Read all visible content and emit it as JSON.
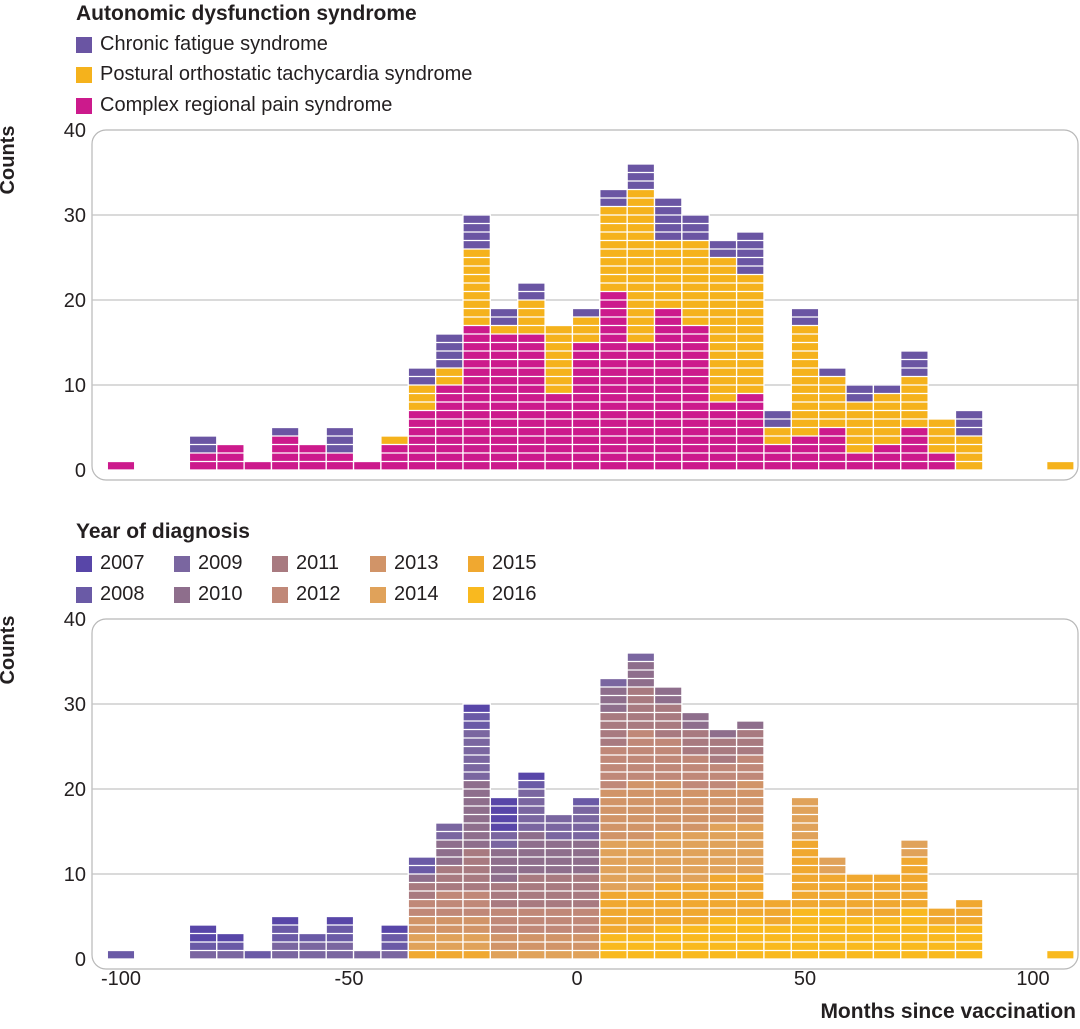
{
  "chart_data": [
    {
      "type": "bar",
      "stacked": true,
      "title": "Autonomic dysfunction syndrome",
      "ylabel": "Counts",
      "xlabel": "",
      "ylim": [
        0,
        40
      ],
      "yticks": [
        0,
        10,
        20,
        30,
        40
      ],
      "bin_width": 6,
      "x": [
        -100,
        -82,
        -76,
        -70,
        -64,
        -58,
        -52,
        -46,
        -40,
        -34,
        -28,
        -22,
        -16,
        -10,
        -4,
        2,
        8,
        14,
        20,
        26,
        32,
        38,
        44,
        50,
        56,
        62,
        68,
        74,
        80,
        86,
        106
      ],
      "series": [
        {
          "name": "Complex regional pain syndrome",
          "color": "#cc1a8c",
          "values": [
            1,
            2,
            3,
            1,
            4,
            3,
            2,
            1,
            3,
            7,
            10,
            17,
            16,
            16,
            9,
            15,
            21,
            15,
            19,
            17,
            8,
            9,
            3,
            4,
            5,
            2,
            3,
            5,
            2,
            0,
            0
          ]
        },
        {
          "name": "Postural orthostatic tachycardia syndrome",
          "color": "#f5b21c",
          "values": [
            0,
            0,
            0,
            0,
            0,
            0,
            0,
            0,
            1,
            3,
            2,
            9,
            1,
            4,
            8,
            3,
            10,
            18,
            8,
            10,
            17,
            14,
            2,
            13,
            6,
            6,
            6,
            6,
            4,
            4,
            1
          ]
        },
        {
          "name": "Chronic fatigue syndrome",
          "color": "#6a55a3",
          "values": [
            0,
            2,
            0,
            0,
            1,
            0,
            3,
            0,
            0,
            2,
            4,
            4,
            2,
            2,
            0,
            1,
            2,
            3,
            5,
            3,
            2,
            5,
            2,
            2,
            1,
            2,
            1,
            3,
            0,
            3,
            0
          ]
        }
      ]
    },
    {
      "type": "bar",
      "stacked": true,
      "title": "Year of diagnosis",
      "ylabel": "Counts",
      "xlabel": "Months since vaccination",
      "ylim": [
        0,
        40
      ],
      "yticks": [
        0,
        10,
        20,
        30,
        40
      ],
      "xticks": [
        -100,
        -50,
        0,
        50,
        100
      ],
      "xlim": [
        -105,
        110
      ],
      "bin_width": 6,
      "x": [
        -100,
        -82,
        -76,
        -70,
        -64,
        -58,
        -52,
        -46,
        -40,
        -34,
        -28,
        -22,
        -16,
        -10,
        -4,
        2,
        8,
        14,
        20,
        26,
        32,
        38,
        44,
        50,
        56,
        62,
        68,
        74,
        80,
        86,
        106
      ],
      "series": [
        {
          "name": "2016",
          "color": "#f9b91f",
          "values": [
            0,
            0,
            0,
            0,
            0,
            0,
            0,
            0,
            0,
            0,
            0,
            0,
            0,
            0,
            0,
            0,
            3,
            3,
            4,
            4,
            5,
            5,
            4,
            6,
            6,
            5,
            5,
            6,
            4,
            4,
            1
          ]
        },
        {
          "name": "2015",
          "color": "#f0a830",
          "values": [
            0,
            0,
            0,
            0,
            0,
            0,
            0,
            0,
            0,
            1,
            1,
            1,
            0,
            0,
            0,
            0,
            5,
            5,
            5,
            5,
            5,
            5,
            3,
            8,
            4,
            5,
            5,
            6,
            2,
            3,
            0
          ]
        },
        {
          "name": "2014",
          "color": "#e0a25a",
          "values": [
            0,
            0,
            0,
            0,
            0,
            0,
            0,
            0,
            0,
            2,
            2,
            2,
            1,
            1,
            1,
            1,
            6,
            6,
            6,
            6,
            6,
            6,
            0,
            5,
            2,
            0,
            0,
            2,
            0,
            0,
            0
          ]
        },
        {
          "name": "2013",
          "color": "#d19468",
          "values": [
            0,
            0,
            0,
            0,
            0,
            0,
            0,
            0,
            0,
            2,
            2,
            2,
            2,
            2,
            2,
            2,
            6,
            7,
            6,
            5,
            4,
            5,
            0,
            0,
            0,
            0,
            0,
            0,
            0,
            0,
            0
          ]
        },
        {
          "name": "2012",
          "color": "#c08878",
          "values": [
            0,
            0,
            0,
            0,
            0,
            0,
            0,
            0,
            0,
            2,
            3,
            3,
            3,
            3,
            3,
            3,
            5,
            6,
            5,
            4,
            3,
            3,
            0,
            0,
            0,
            0,
            0,
            0,
            0,
            0,
            0
          ]
        },
        {
          "name": "2011",
          "color": "#a87a80",
          "values": [
            0,
            0,
            0,
            0,
            0,
            0,
            0,
            0,
            0,
            2,
            3,
            5,
            3,
            4,
            4,
            4,
            4,
            5,
            4,
            3,
            3,
            3,
            0,
            0,
            0,
            0,
            0,
            0,
            0,
            0,
            0
          ]
        },
        {
          "name": "2010",
          "color": "#8e6e8c",
          "values": [
            0,
            0,
            0,
            0,
            0,
            0,
            0,
            0,
            0,
            1,
            3,
            8,
            4,
            5,
            4,
            4,
            3,
            3,
            2,
            2,
            1,
            1,
            0,
            0,
            0,
            0,
            0,
            0,
            0,
            0,
            0
          ]
        },
        {
          "name": "2009",
          "color": "#7a66a0",
          "values": [
            0,
            1,
            1,
            0,
            2,
            2,
            2,
            1,
            1,
            0,
            2,
            6,
            2,
            5,
            3,
            4,
            1,
            1,
            0,
            0,
            0,
            0,
            0,
            0,
            0,
            0,
            0,
            0,
            0,
            0,
            0
          ]
        },
        {
          "name": "2008",
          "color": "#6a5aa6",
          "values": [
            1,
            1,
            1,
            1,
            2,
            1,
            2,
            0,
            2,
            2,
            0,
            2,
            0,
            1,
            0,
            1,
            0,
            0,
            0,
            0,
            0,
            0,
            0,
            0,
            0,
            0,
            0,
            0,
            0,
            0,
            0
          ]
        },
        {
          "name": "2007",
          "color": "#5846a8",
          "values": [
            0,
            2,
            1,
            0,
            1,
            0,
            1,
            0,
            1,
            0,
            0,
            1,
            4,
            1,
            0,
            0,
            0,
            0,
            0,
            0,
            0,
            0,
            0,
            0,
            0,
            0,
            0,
            0,
            0,
            0,
            0
          ]
        }
      ]
    }
  ]
}
